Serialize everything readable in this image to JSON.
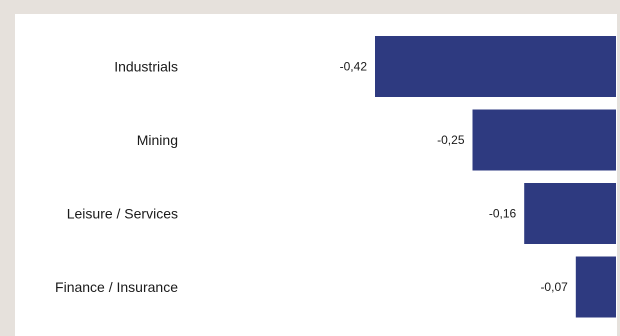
{
  "chart_data": {
    "type": "bar",
    "orientation": "horizontal",
    "categories": [
      "Industrials",
      "Mining",
      "Leisure / Services",
      "Finance / Insurance"
    ],
    "values": [
      -0.42,
      -0.25,
      -0.16,
      -0.07
    ],
    "value_labels": [
      "-0,42",
      "-0,25",
      "-0,16",
      "-0,07"
    ],
    "title": "",
    "xlabel": "",
    "ylabel": "",
    "xlim": [
      -0.42,
      0
    ],
    "grid": false,
    "legend": "none",
    "bar_color": "#2e3a80"
  }
}
